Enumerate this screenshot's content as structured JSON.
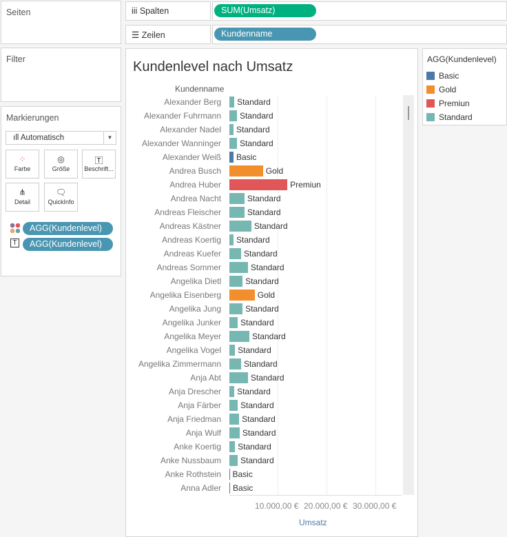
{
  "panels": {
    "pages": "Seiten",
    "filters": "Filter",
    "marks": "Markierungen"
  },
  "marks": {
    "type": "Automatisch",
    "buttons": [
      "Farbe",
      "Größe",
      "Beschrift...",
      "Detail",
      "QuickInfo"
    ],
    "pills": [
      "AGG(Kundenlevel)",
      "AGG(Kundenlevel)"
    ]
  },
  "shelves": {
    "columns_label": "Spalten",
    "columns_pill": "SUM(Umsatz)",
    "rows_label": "Zeilen",
    "rows_pill": "Kundenname"
  },
  "legend": {
    "title": "AGG(Kundenlevel)",
    "items": [
      {
        "label": "Basic",
        "color": "#4e79a7"
      },
      {
        "label": "Gold",
        "color": "#f28e2b"
      },
      {
        "label": "Premiun",
        "color": "#e15759"
      },
      {
        "label": "Standard",
        "color": "#76b7b2"
      }
    ]
  },
  "chart_data": {
    "type": "bar",
    "title": "Kundenlevel nach Umsatz",
    "ylabel": "Kundenname",
    "xlabel": "Umsatz",
    "xticks": [
      "10.000,00 €",
      "20.000,00 €",
      "30.000,00 €"
    ],
    "xlim": [
      0,
      35000
    ],
    "rows": [
      {
        "name": "Alexander Berg",
        "value": 1000,
        "level": "Standard"
      },
      {
        "name": "Alexander Fuhrmann",
        "value": 1550,
        "level": "Standard"
      },
      {
        "name": "Alexander Nadel",
        "value": 850,
        "level": "Standard"
      },
      {
        "name": "Alexander Wanninger",
        "value": 1550,
        "level": "Standard"
      },
      {
        "name": "Alexander Weiß",
        "value": 850,
        "level": "Basic"
      },
      {
        "name": "Andrea Busch",
        "value": 6900,
        "level": "Gold"
      },
      {
        "name": "Andrea Huber",
        "value": 11900,
        "level": "Premiun"
      },
      {
        "name": "Andrea Nacht",
        "value": 3100,
        "level": "Standard"
      },
      {
        "name": "Andreas Fleischer",
        "value": 3100,
        "level": "Standard"
      },
      {
        "name": "Andreas Kästner",
        "value": 4500,
        "level": "Standard"
      },
      {
        "name": "Andreas Koertig",
        "value": 850,
        "level": "Standard"
      },
      {
        "name": "Andreas Kuefer",
        "value": 2400,
        "level": "Standard"
      },
      {
        "name": "Andreas Sommer",
        "value": 3800,
        "level": "Standard"
      },
      {
        "name": "Angelika Dietl",
        "value": 2700,
        "level": "Standard"
      },
      {
        "name": "Angelika Eisenberg",
        "value": 5200,
        "level": "Gold"
      },
      {
        "name": "Angelika Jung",
        "value": 2700,
        "level": "Standard"
      },
      {
        "name": "Angelika Junker",
        "value": 1700,
        "level": "Standard"
      },
      {
        "name": "Angelika Meyer",
        "value": 4100,
        "level": "Standard"
      },
      {
        "name": "Angelika Vogel",
        "value": 1150,
        "level": "Standard"
      },
      {
        "name": "Angelika Zimmermann",
        "value": 2400,
        "level": "Standard"
      },
      {
        "name": "Anja Abt",
        "value": 3800,
        "level": "Standard"
      },
      {
        "name": "Anja Drescher",
        "value": 1000,
        "level": "Standard"
      },
      {
        "name": "Anja Färber",
        "value": 1700,
        "level": "Standard"
      },
      {
        "name": "Anja Friedman",
        "value": 2000,
        "level": "Standard"
      },
      {
        "name": "Anja Wulf",
        "value": 2100,
        "level": "Standard"
      },
      {
        "name": "Anke Koertig",
        "value": 1150,
        "level": "Standard"
      },
      {
        "name": "Anke Nussbaum",
        "value": 1700,
        "level": "Standard"
      },
      {
        "name": "Anke Rothstein",
        "value": 50,
        "level": "Basic"
      },
      {
        "name": "Anna Adler",
        "value": 150,
        "level": "Basic"
      }
    ]
  }
}
